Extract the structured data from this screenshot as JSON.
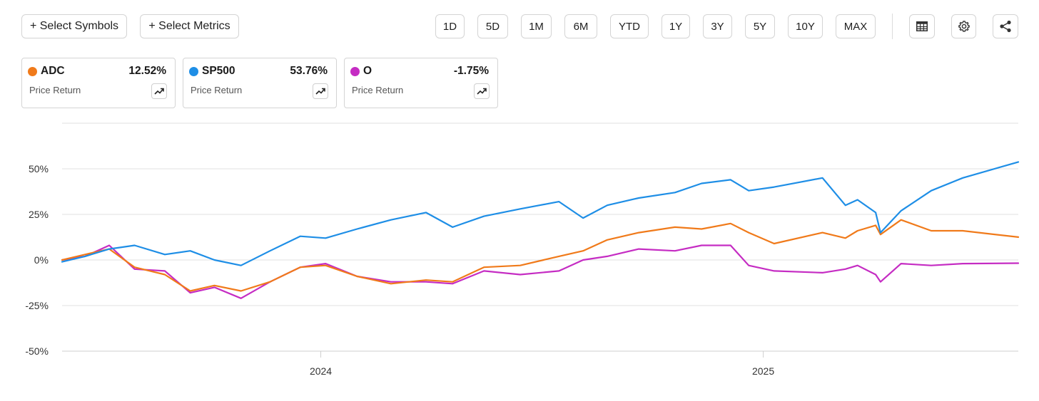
{
  "toolbar": {
    "select_symbols": "+ Select Symbols",
    "select_metrics": "+ Select Metrics",
    "ranges": [
      "1D",
      "5D",
      "1M",
      "6M",
      "YTD",
      "1Y",
      "3Y",
      "5Y",
      "10Y",
      "MAX"
    ],
    "icons": [
      "table-icon",
      "gear-icon",
      "share-icon"
    ]
  },
  "legend_cards": [
    {
      "symbol": "ADC",
      "value": "12.52%",
      "metric": "Price Return",
      "color": "#f07a1a"
    },
    {
      "symbol": "SP500",
      "value": "53.76%",
      "metric": "Price Return",
      "color": "#1e8ee6"
    },
    {
      "symbol": "O",
      "value": "-1.75%",
      "metric": "Price Return",
      "color": "#c52cc3"
    }
  ],
  "chart_data": {
    "type": "line",
    "title": "",
    "xlabel": "",
    "ylabel": "",
    "x_ticks": [
      "2024",
      "2025"
    ],
    "y_ticks": [
      "50%",
      "25%",
      "0%",
      "-25%",
      "-50%"
    ],
    "ylim": [
      -50,
      75
    ],
    "xlim": [
      "2023-06-01",
      "2025-07-31"
    ],
    "grid": true,
    "legend": "top-left cards",
    "series": [
      {
        "name": "SP500",
        "color": "#1e8ee6",
        "x": [
          "2023-06-01",
          "2023-06-20",
          "2023-07-10",
          "2023-07-31",
          "2023-08-25",
          "2023-09-15",
          "2023-10-05",
          "2023-10-27",
          "2023-11-20",
          "2023-12-15",
          "2024-01-05",
          "2024-01-31",
          "2024-02-28",
          "2024-03-28",
          "2024-04-19",
          "2024-05-15",
          "2024-06-14",
          "2024-07-16",
          "2024-08-05",
          "2024-08-25",
          "2024-09-20",
          "2024-10-20",
          "2024-11-11",
          "2024-12-05",
          "2024-12-20",
          "2025-01-10",
          "2025-02-19",
          "2025-03-10",
          "2025-03-20",
          "2025-04-04",
          "2025-04-08",
          "2025-04-25",
          "2025-05-20",
          "2025-06-15",
          "2025-07-31"
        ],
        "values": [
          -1,
          2,
          6,
          8,
          3,
          5,
          0,
          -3,
          5,
          13,
          12,
          17,
          22,
          26,
          18,
          24,
          28,
          32,
          23,
          30,
          34,
          37,
          42,
          44,
          38,
          40,
          45,
          30,
          33,
          26,
          15,
          27,
          38,
          45,
          53.76
        ]
      },
      {
        "name": "ADC",
        "color": "#f07a1a",
        "x": [
          "2023-06-01",
          "2023-06-20",
          "2023-07-10",
          "2023-07-31",
          "2023-08-25",
          "2023-09-15",
          "2023-10-05",
          "2023-10-27",
          "2023-11-20",
          "2023-12-15",
          "2024-01-05",
          "2024-01-31",
          "2024-02-28",
          "2024-03-28",
          "2024-04-19",
          "2024-05-15",
          "2024-06-14",
          "2024-07-16",
          "2024-08-05",
          "2024-08-25",
          "2024-09-20",
          "2024-10-20",
          "2024-11-11",
          "2024-12-05",
          "2024-12-20",
          "2025-01-10",
          "2025-02-19",
          "2025-03-10",
          "2025-03-20",
          "2025-04-04",
          "2025-04-08",
          "2025-04-25",
          "2025-05-20",
          "2025-06-15",
          "2025-07-31"
        ],
        "values": [
          0,
          3,
          6,
          -4,
          -8,
          -17,
          -14,
          -17,
          -12,
          -4,
          -3,
          -9,
          -13,
          -11,
          -12,
          -4,
          -3,
          2,
          5,
          11,
          15,
          18,
          17,
          20,
          15,
          9,
          15,
          12,
          16,
          19,
          14,
          22,
          16,
          16,
          12.52
        ]
      },
      {
        "name": "O",
        "color": "#c52cc3",
        "x": [
          "2023-06-01",
          "2023-06-20",
          "2023-07-10",
          "2023-07-31",
          "2023-08-25",
          "2023-09-15",
          "2023-10-05",
          "2023-10-27",
          "2023-11-20",
          "2023-12-15",
          "2024-01-05",
          "2024-01-31",
          "2024-02-28",
          "2024-03-28",
          "2024-04-19",
          "2024-05-15",
          "2024-06-14",
          "2024-07-16",
          "2024-08-05",
          "2024-08-25",
          "2024-09-20",
          "2024-10-20",
          "2024-11-11",
          "2024-12-05",
          "2024-12-20",
          "2025-01-10",
          "2025-02-19",
          "2025-03-10",
          "2025-03-20",
          "2025-04-04",
          "2025-04-08",
          "2025-04-25",
          "2025-05-20",
          "2025-06-15",
          "2025-07-31"
        ],
        "values": [
          0,
          2,
          8,
          -5,
          -6,
          -18,
          -15,
          -21,
          -12,
          -4,
          -2,
          -9,
          -12,
          -12,
          -13,
          -6,
          -8,
          -6,
          0,
          2,
          6,
          5,
          8,
          8,
          -3,
          -6,
          -7,
          -5,
          -3,
          -8,
          -12,
          -2,
          -3,
          -2,
          -1.75
        ]
      }
    ]
  }
}
